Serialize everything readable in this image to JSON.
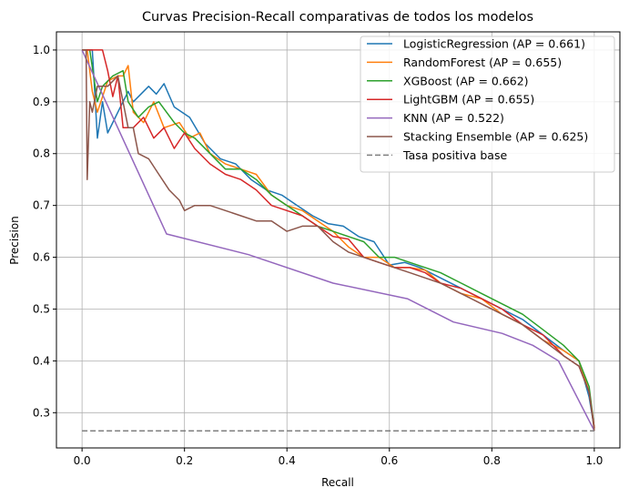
{
  "chart_data": {
    "type": "line",
    "title": "Curvas Precision-Recall comparativas de todos los modelos",
    "xlabel": "Recall",
    "ylabel": "Precision",
    "xlim": [
      -0.05,
      1.05
    ],
    "ylim": [
      0.232,
      1.035
    ],
    "xticks": [
      0.0,
      0.2,
      0.4,
      0.6,
      0.8,
      1.0
    ],
    "xtick_labels": [
      "0.0",
      "0.2",
      "0.4",
      "0.6",
      "0.8",
      "1.0"
    ],
    "yticks": [
      0.3,
      0.4,
      0.5,
      0.6,
      0.7,
      0.8,
      0.9,
      1.0
    ],
    "ytick_labels": [
      "0.3",
      "0.4",
      "0.5",
      "0.6",
      "0.7",
      "0.8",
      "0.9",
      "1.0"
    ],
    "grid": true,
    "legend_position": "top-right",
    "series": [
      {
        "name": "LogisticRegression (AP = 0.661)",
        "color": "#1f77b4",
        "dashed": false,
        "points": [
          [
            0,
            1.0
          ],
          [
            0.02,
            1.0
          ],
          [
            0.03,
            0.83
          ],
          [
            0.04,
            0.9
          ],
          [
            0.05,
            0.84
          ],
          [
            0.07,
            0.88
          ],
          [
            0.09,
            0.92
          ],
          [
            0.1,
            0.9
          ],
          [
            0.13,
            0.93
          ],
          [
            0.145,
            0.915
          ],
          [
            0.16,
            0.935
          ],
          [
            0.18,
            0.89
          ],
          [
            0.21,
            0.87
          ],
          [
            0.24,
            0.82
          ],
          [
            0.27,
            0.79
          ],
          [
            0.3,
            0.78
          ],
          [
            0.33,
            0.75
          ],
          [
            0.36,
            0.73
          ],
          [
            0.39,
            0.72
          ],
          [
            0.42,
            0.7
          ],
          [
            0.45,
            0.68
          ],
          [
            0.48,
            0.665
          ],
          [
            0.51,
            0.66
          ],
          [
            0.54,
            0.64
          ],
          [
            0.57,
            0.63
          ],
          [
            0.6,
            0.585
          ],
          [
            0.63,
            0.59
          ],
          [
            0.66,
            0.58
          ],
          [
            0.7,
            0.56
          ],
          [
            0.74,
            0.54
          ],
          [
            0.78,
            0.52
          ],
          [
            0.82,
            0.5
          ],
          [
            0.86,
            0.48
          ],
          [
            0.9,
            0.45
          ],
          [
            0.94,
            0.42
          ],
          [
            0.97,
            0.4
          ],
          [
            0.99,
            0.33
          ],
          [
            1.0,
            0.27
          ]
        ]
      },
      {
        "name": "RandomForest (AP = 0.655)",
        "color": "#ff7f0e",
        "dashed": false,
        "points": [
          [
            0,
            1.0
          ],
          [
            0.01,
            1.0
          ],
          [
            0.02,
            0.92
          ],
          [
            0.03,
            0.88
          ],
          [
            0.05,
            0.94
          ],
          [
            0.07,
            0.95
          ],
          [
            0.08,
            0.95
          ],
          [
            0.09,
            0.97
          ],
          [
            0.1,
            0.88
          ],
          [
            0.12,
            0.86
          ],
          [
            0.14,
            0.9
          ],
          [
            0.16,
            0.85
          ],
          [
            0.19,
            0.86
          ],
          [
            0.21,
            0.83
          ],
          [
            0.23,
            0.84
          ],
          [
            0.25,
            0.8
          ],
          [
            0.28,
            0.78
          ],
          [
            0.31,
            0.77
          ],
          [
            0.34,
            0.76
          ],
          [
            0.37,
            0.72
          ],
          [
            0.4,
            0.7
          ],
          [
            0.43,
            0.69
          ],
          [
            0.46,
            0.67
          ],
          [
            0.49,
            0.65
          ],
          [
            0.52,
            0.62
          ],
          [
            0.55,
            0.6
          ],
          [
            0.58,
            0.6
          ],
          [
            0.61,
            0.58
          ],
          [
            0.64,
            0.58
          ],
          [
            0.67,
            0.575
          ],
          [
            0.7,
            0.55
          ],
          [
            0.74,
            0.53
          ],
          [
            0.78,
            0.52
          ],
          [
            0.82,
            0.49
          ],
          [
            0.86,
            0.47
          ],
          [
            0.9,
            0.44
          ],
          [
            0.94,
            0.42
          ],
          [
            0.97,
            0.4
          ],
          [
            0.99,
            0.34
          ],
          [
            1.0,
            0.27
          ]
        ]
      },
      {
        "name": "XGBoost (AP = 0.662)",
        "color": "#2ca02c",
        "dashed": false,
        "points": [
          [
            0,
            1.0
          ],
          [
            0.015,
            1.0
          ],
          [
            0.03,
            0.9
          ],
          [
            0.04,
            0.93
          ],
          [
            0.06,
            0.95
          ],
          [
            0.08,
            0.96
          ],
          [
            0.09,
            0.9
          ],
          [
            0.11,
            0.87
          ],
          [
            0.13,
            0.89
          ],
          [
            0.15,
            0.9
          ],
          [
            0.18,
            0.86
          ],
          [
            0.2,
            0.84
          ],
          [
            0.22,
            0.83
          ],
          [
            0.25,
            0.8
          ],
          [
            0.28,
            0.77
          ],
          [
            0.31,
            0.77
          ],
          [
            0.34,
            0.75
          ],
          [
            0.37,
            0.72
          ],
          [
            0.4,
            0.7
          ],
          [
            0.43,
            0.68
          ],
          [
            0.46,
            0.66
          ],
          [
            0.49,
            0.65
          ],
          [
            0.52,
            0.64
          ],
          [
            0.55,
            0.63
          ],
          [
            0.58,
            0.6
          ],
          [
            0.61,
            0.6
          ],
          [
            0.64,
            0.59
          ],
          [
            0.67,
            0.58
          ],
          [
            0.7,
            0.57
          ],
          [
            0.74,
            0.55
          ],
          [
            0.78,
            0.53
          ],
          [
            0.82,
            0.51
          ],
          [
            0.86,
            0.49
          ],
          [
            0.9,
            0.46
          ],
          [
            0.94,
            0.43
          ],
          [
            0.97,
            0.4
          ],
          [
            0.99,
            0.35
          ],
          [
            1.0,
            0.27
          ]
        ]
      },
      {
        "name": "LightGBM (AP = 0.655)",
        "color": "#d62728",
        "dashed": false,
        "points": [
          [
            0,
            1.0
          ],
          [
            0.04,
            1.0
          ],
          [
            0.05,
            0.96
          ],
          [
            0.06,
            0.91
          ],
          [
            0.07,
            0.95
          ],
          [
            0.08,
            0.85
          ],
          [
            0.1,
            0.85
          ],
          [
            0.12,
            0.87
          ],
          [
            0.14,
            0.83
          ],
          [
            0.16,
            0.85
          ],
          [
            0.18,
            0.81
          ],
          [
            0.2,
            0.84
          ],
          [
            0.22,
            0.81
          ],
          [
            0.25,
            0.78
          ],
          [
            0.28,
            0.76
          ],
          [
            0.31,
            0.75
          ],
          [
            0.34,
            0.73
          ],
          [
            0.37,
            0.7
          ],
          [
            0.4,
            0.69
          ],
          [
            0.43,
            0.68
          ],
          [
            0.46,
            0.66
          ],
          [
            0.49,
            0.64
          ],
          [
            0.52,
            0.635
          ],
          [
            0.55,
            0.6
          ],
          [
            0.58,
            0.59
          ],
          [
            0.61,
            0.58
          ],
          [
            0.64,
            0.58
          ],
          [
            0.67,
            0.57
          ],
          [
            0.7,
            0.55
          ],
          [
            0.74,
            0.54
          ],
          [
            0.78,
            0.52
          ],
          [
            0.82,
            0.5
          ],
          [
            0.86,
            0.47
          ],
          [
            0.9,
            0.45
          ],
          [
            0.94,
            0.41
          ],
          [
            0.97,
            0.39
          ],
          [
            0.99,
            0.34
          ],
          [
            1.0,
            0.27
          ]
        ]
      },
      {
        "name": "KNN (AP = 0.522)",
        "color": "#9467bd",
        "dashed": false,
        "points": [
          [
            0,
            1.0
          ],
          [
            0.165,
            0.645
          ],
          [
            0.325,
            0.605
          ],
          [
            0.49,
            0.55
          ],
          [
            0.635,
            0.52
          ],
          [
            0.725,
            0.475
          ],
          [
            0.82,
            0.453
          ],
          [
            0.88,
            0.43
          ],
          [
            0.93,
            0.4
          ],
          [
            1.0,
            0.265
          ]
        ]
      },
      {
        "name": "Stacking Ensemble (AP = 0.625)",
        "color": "#8c564b",
        "dashed": false,
        "points": [
          [
            0,
            1.0
          ],
          [
            0.008,
            1.0
          ],
          [
            0.01,
            0.75
          ],
          [
            0.015,
            0.9
          ],
          [
            0.02,
            0.88
          ],
          [
            0.03,
            0.93
          ],
          [
            0.05,
            0.93
          ],
          [
            0.07,
            0.95
          ],
          [
            0.09,
            0.85
          ],
          [
            0.1,
            0.85
          ],
          [
            0.11,
            0.8
          ],
          [
            0.13,
            0.79
          ],
          [
            0.15,
            0.76
          ],
          [
            0.17,
            0.73
          ],
          [
            0.19,
            0.71
          ],
          [
            0.2,
            0.69
          ],
          [
            0.22,
            0.7
          ],
          [
            0.25,
            0.7
          ],
          [
            0.28,
            0.69
          ],
          [
            0.31,
            0.68
          ],
          [
            0.34,
            0.67
          ],
          [
            0.37,
            0.67
          ],
          [
            0.4,
            0.65
          ],
          [
            0.43,
            0.66
          ],
          [
            0.46,
            0.66
          ],
          [
            0.49,
            0.63
          ],
          [
            0.52,
            0.61
          ],
          [
            0.55,
            0.6
          ],
          [
            0.58,
            0.59
          ],
          [
            0.61,
            0.58
          ],
          [
            0.64,
            0.57
          ],
          [
            0.67,
            0.56
          ],
          [
            0.7,
            0.55
          ],
          [
            0.74,
            0.53
          ],
          [
            0.78,
            0.51
          ],
          [
            0.82,
            0.49
          ],
          [
            0.86,
            0.47
          ],
          [
            0.9,
            0.44
          ],
          [
            0.94,
            0.41
          ],
          [
            0.97,
            0.39
          ],
          [
            0.99,
            0.34
          ],
          [
            1.0,
            0.265
          ]
        ]
      },
      {
        "name": "Tasa positiva base",
        "color": "#7f7f7f",
        "dashed": true,
        "points": [
          [
            0,
            0.265
          ],
          [
            1.0,
            0.265
          ]
        ]
      }
    ]
  }
}
